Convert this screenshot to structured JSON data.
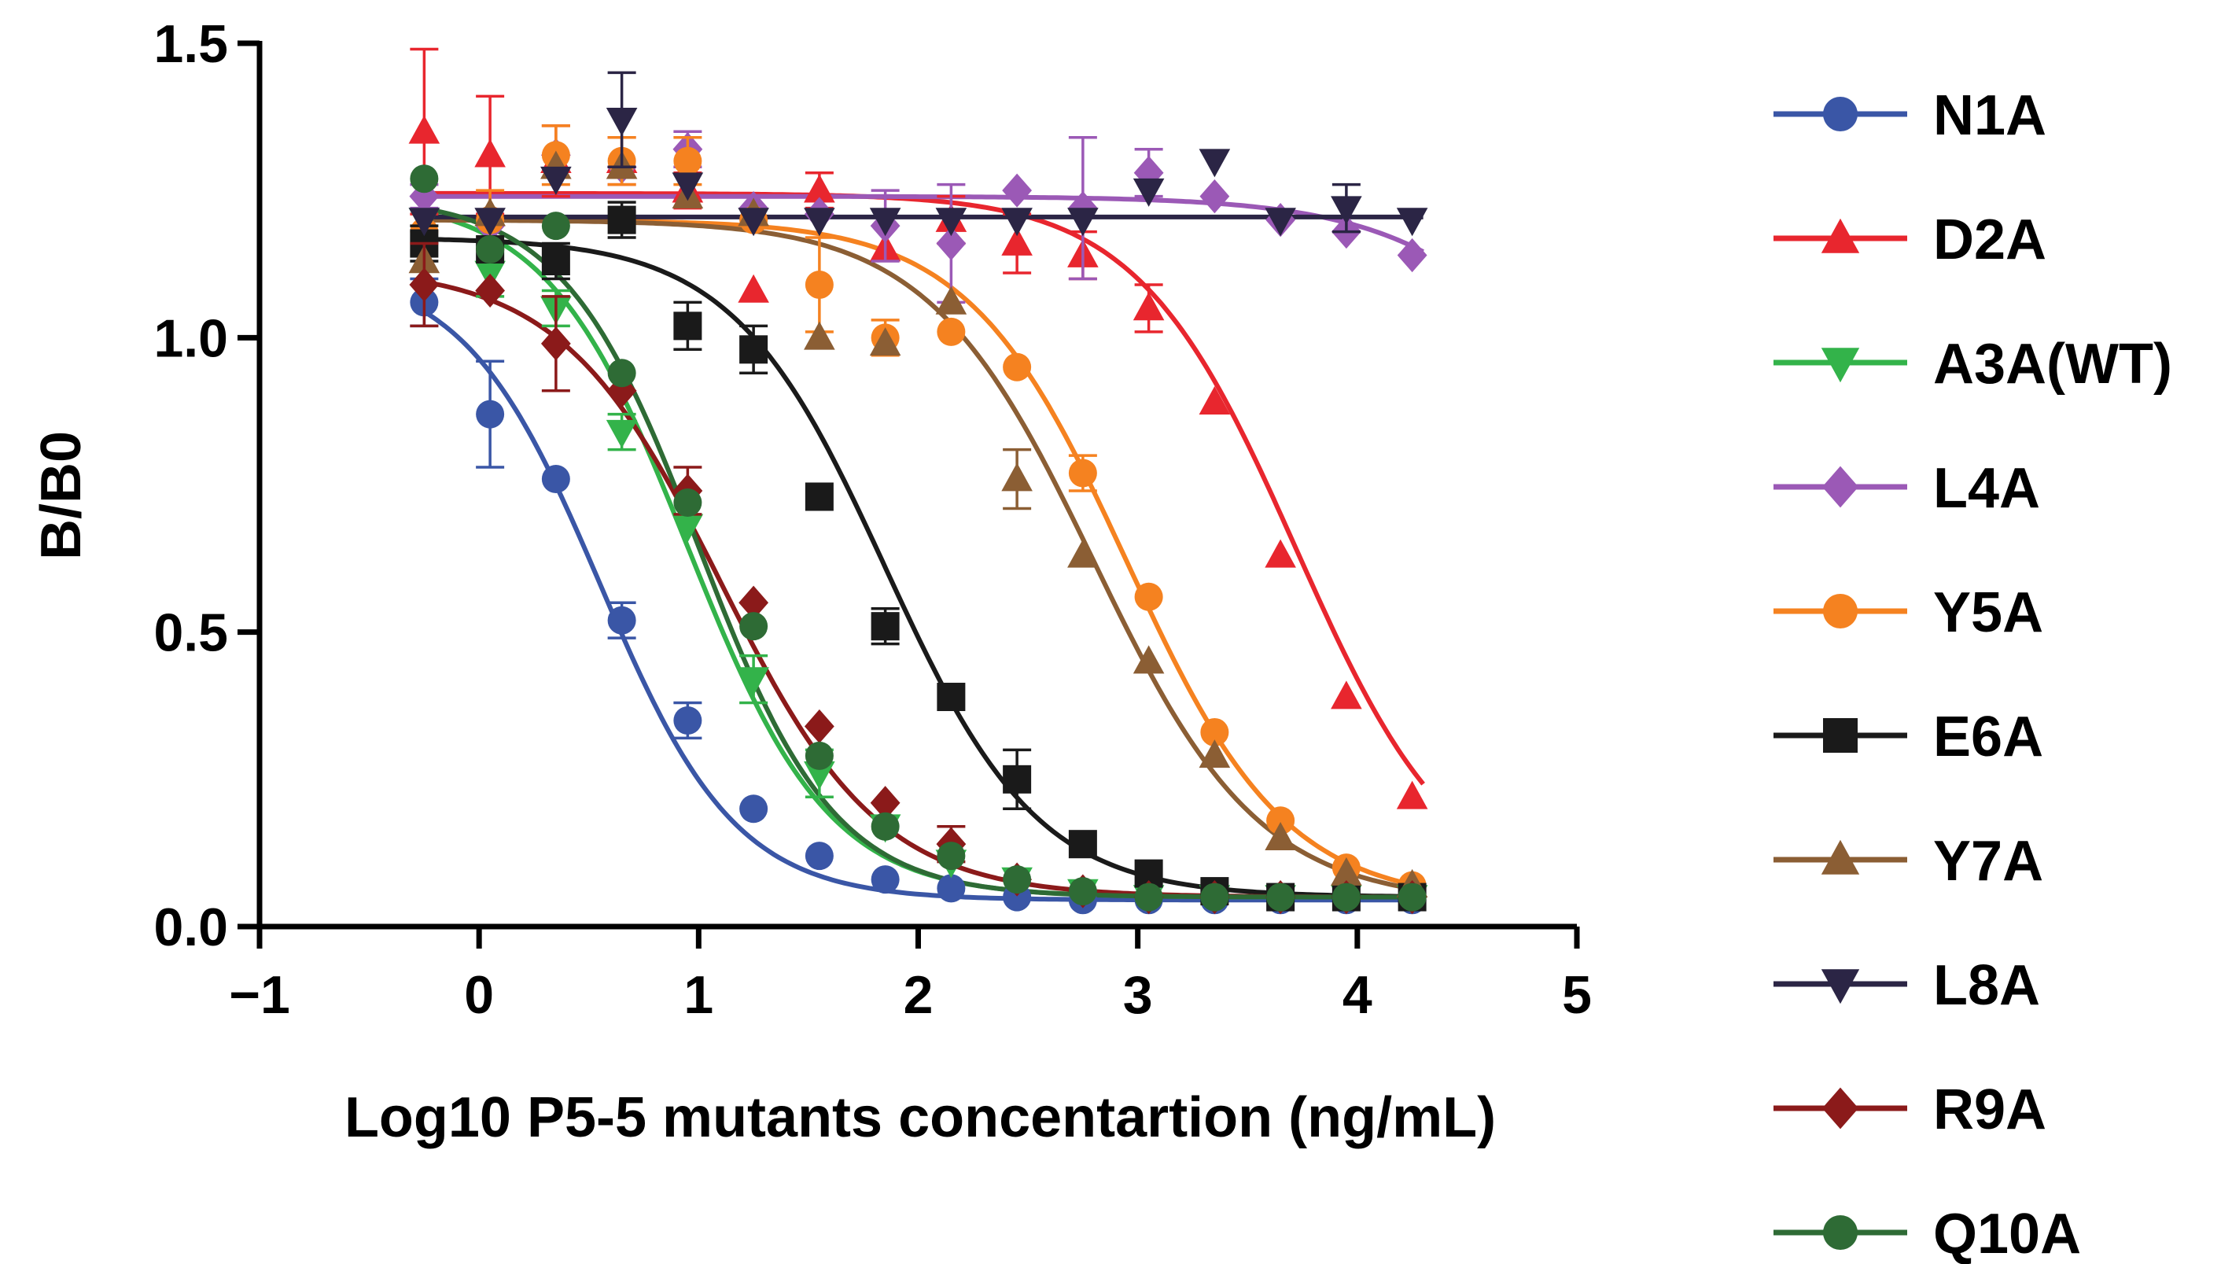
{
  "chart_data": {
    "type": "line",
    "title": "",
    "xlabel": "Log10 P5-5  mutants concentartion (ng/mL)",
    "ylabel": "B/B0",
    "xlim": [
      -1,
      5
    ],
    "ylim": [
      0,
      1.5
    ],
    "xticks": [
      -1,
      0,
      1,
      2,
      3,
      4,
      5
    ],
    "xtick_labels": [
      "−1",
      "0",
      "1",
      "2",
      "3",
      "4",
      "5"
    ],
    "yticks": [
      0,
      0.5,
      1.0,
      1.5
    ],
    "ytick_labels": [
      "0.0",
      "0.5",
      "1.0",
      "1.5"
    ],
    "legend_position": "right",
    "series": [
      {
        "name": "N1A",
        "color": "#3a56a6",
        "marker": "circle",
        "x": [
          -0.25,
          0.05,
          0.35,
          0.65,
          0.95,
          1.25,
          1.55,
          1.85,
          2.15,
          2.45,
          2.75,
          3.05,
          3.35,
          3.65,
          3.95,
          4.25
        ],
        "y": [
          1.06,
          0.87,
          0.76,
          0.52,
          0.35,
          0.2,
          0.12,
          0.08,
          0.065,
          0.05,
          0.045,
          0.045,
          0.045,
          0.045,
          0.045,
          0.045
        ],
        "err": [
          0.04,
          0.09,
          0.0,
          0.03,
          0.03,
          0.0,
          0.0,
          0.0,
          0.0,
          0.0,
          0.0,
          0.0,
          0.0,
          0.0,
          0.0,
          0.0
        ],
        "fit": {
          "top": 1.12,
          "bottom": 0.045,
          "logec50": 0.55,
          "hill": 1.4
        }
      },
      {
        "name": "D2A",
        "color": "#e8262e",
        "marker": "triangle-up",
        "x": [
          -0.25,
          0.05,
          0.35,
          0.65,
          0.95,
          1.25,
          1.55,
          1.85,
          2.15,
          2.45,
          2.75,
          3.05,
          3.35,
          3.65,
          3.95,
          4.25
        ],
        "y": [
          1.35,
          1.31,
          1.3,
          1.3,
          1.25,
          1.08,
          1.25,
          1.15,
          1.2,
          1.16,
          1.14,
          1.05,
          0.89,
          0.63,
          0.39,
          0.22
        ],
        "err": [
          0.14,
          0.1,
          0.06,
          0.04,
          0.03,
          0.0,
          0.03,
          0.0,
          0.04,
          0.05,
          0.04,
          0.04,
          0.0,
          0.0,
          0.0,
          0.0
        ],
        "fit": {
          "top": 1.245,
          "bottom": 0.04,
          "logec50": 3.72,
          "hill": 1.2
        }
      },
      {
        "name": "A3A(WT)",
        "color": "#33b34a",
        "marker": "triangle-down",
        "x": [
          -0.25,
          0.05,
          0.35,
          0.65,
          0.95,
          1.25,
          1.55,
          1.85,
          2.15,
          2.45,
          2.75,
          3.05,
          3.35,
          3.65,
          3.95,
          4.25
        ],
        "y": [
          1.2,
          1.11,
          1.05,
          0.84,
          0.68,
          0.42,
          0.26,
          0.17,
          0.11,
          0.08,
          0.06,
          0.05,
          0.05,
          0.05,
          0.05,
          0.05
        ],
        "err": [
          0.0,
          0.04,
          0.03,
          0.03,
          0.0,
          0.04,
          0.04,
          0.0,
          0.0,
          0.0,
          0.0,
          0.0,
          0.0,
          0.0,
          0.0,
          0.0
        ],
        "fit": {
          "top": 1.24,
          "bottom": 0.05,
          "logec50": 0.95,
          "hill": 1.35
        }
      },
      {
        "name": "L4A",
        "color": "#9b59b6",
        "marker": "diamond",
        "x": [
          -0.25,
          0.05,
          0.35,
          0.65,
          0.95,
          1.25,
          1.55,
          1.85,
          2.15,
          2.45,
          2.75,
          3.05,
          3.35,
          3.65,
          3.95,
          4.25
        ],
        "y": [
          1.24,
          1.19,
          1.31,
          1.29,
          1.32,
          1.22,
          1.21,
          1.19,
          1.16,
          1.25,
          1.22,
          1.28,
          1.24,
          1.2,
          1.18,
          1.14
        ],
        "err": [
          0.02,
          0.0,
          0.0,
          0.0,
          0.03,
          0.0,
          0.0,
          0.06,
          0.1,
          0.0,
          0.12,
          0.04,
          0.0,
          0.0,
          0.0,
          0.0
        ],
        "fit": {
          "top": 1.24,
          "bottom": 0.4,
          "logec50": 5.2,
          "hill": 1.0
        }
      },
      {
        "name": "Y5A",
        "color": "#f58220",
        "marker": "circle",
        "x": [
          -0.25,
          0.05,
          0.35,
          0.65,
          0.95,
          1.25,
          1.55,
          1.85,
          2.15,
          2.45,
          2.75,
          3.05,
          3.35,
          3.65,
          3.95,
          4.25
        ],
        "y": [
          1.18,
          1.2,
          1.31,
          1.3,
          1.3,
          1.2,
          1.09,
          1.0,
          1.01,
          0.95,
          0.77,
          0.56,
          0.33,
          0.18,
          0.1,
          0.07
        ],
        "err": [
          0.0,
          0.05,
          0.05,
          0.04,
          0.04,
          0.0,
          0.08,
          0.03,
          0.0,
          0.0,
          0.03,
          0.0,
          0.0,
          0.0,
          0.0,
          0.0
        ],
        "fit": {
          "top": 1.2,
          "bottom": 0.04,
          "logec50": 2.95,
          "hill": 1.2
        }
      },
      {
        "name": "E6A",
        "color": "#1a1a1a",
        "marker": "square",
        "x": [
          -0.25,
          0.05,
          0.35,
          0.65,
          0.95,
          1.25,
          1.55,
          1.85,
          2.15,
          2.45,
          2.75,
          3.05,
          3.35,
          3.65,
          3.95,
          4.25
        ],
        "y": [
          1.16,
          1.15,
          1.13,
          1.2,
          1.02,
          0.98,
          0.73,
          0.51,
          0.39,
          0.25,
          0.14,
          0.09,
          0.06,
          0.05,
          0.05,
          0.05
        ],
        "err": [
          0.03,
          0.0,
          0.03,
          0.03,
          0.04,
          0.04,
          0.0,
          0.03,
          0.0,
          0.05,
          0.0,
          0.0,
          0.0,
          0.0,
          0.0,
          0.0
        ],
        "fit": {
          "top": 1.17,
          "bottom": 0.05,
          "logec50": 1.85,
          "hill": 1.25
        }
      },
      {
        "name": "Y7A",
        "color": "#8b5e34",
        "marker": "triangle-up",
        "x": [
          -0.25,
          0.05,
          0.35,
          0.65,
          0.95,
          1.25,
          1.55,
          1.85,
          2.15,
          2.45,
          2.75,
          3.05,
          3.35,
          3.65,
          3.95,
          4.25
        ],
        "y": [
          1.13,
          1.21,
          1.29,
          1.29,
          1.24,
          1.21,
          1.0,
          0.99,
          1.06,
          0.76,
          0.63,
          0.45,
          0.29,
          0.15,
          0.09,
          0.07
        ],
        "err": [
          0.0,
          0.0,
          0.0,
          0.0,
          0.0,
          0.0,
          0.0,
          0.0,
          0.0,
          0.05,
          0.0,
          0.0,
          0.0,
          0.0,
          0.0,
          0.0
        ],
        "fit": {
          "top": 1.2,
          "bottom": 0.04,
          "logec50": 2.8,
          "hill": 1.15
        }
      },
      {
        "name": "L8A",
        "color": "#2b2545",
        "marker": "triangle-down",
        "x": [
          -0.25,
          0.05,
          0.35,
          0.65,
          0.95,
          1.25,
          1.55,
          1.85,
          2.15,
          2.45,
          2.75,
          3.05,
          3.35,
          3.65,
          3.95,
          4.25
        ],
        "y": [
          1.2,
          1.2,
          1.27,
          1.37,
          1.26,
          1.2,
          1.2,
          1.2,
          1.2,
          1.2,
          1.2,
          1.25,
          1.3,
          1.2,
          1.22,
          1.2
        ],
        "err": [
          0.0,
          0.0,
          0.0,
          0.08,
          0.0,
          0.0,
          0.0,
          0.0,
          0.0,
          0.0,
          0.0,
          0.0,
          0.0,
          0.0,
          0.04,
          0.0
        ],
        "fit": {
          "top": 1.205,
          "bottom": 1.205,
          "logec50": 2.0,
          "hill": 1.0
        }
      },
      {
        "name": "R9A",
        "color": "#8b1a1a",
        "marker": "diamond",
        "x": [
          -0.25,
          0.05,
          0.35,
          0.65,
          0.95,
          1.25,
          1.55,
          1.85,
          2.15,
          2.45,
          2.75,
          3.05,
          3.35,
          3.65,
          3.95,
          4.25
        ],
        "y": [
          1.09,
          1.08,
          0.99,
          0.91,
          0.74,
          0.55,
          0.34,
          0.21,
          0.14,
          0.08,
          0.06,
          0.05,
          0.05,
          0.05,
          0.05,
          0.05
        ],
        "err": [
          0.07,
          0.0,
          0.08,
          0.0,
          0.04,
          0.0,
          0.0,
          0.0,
          0.03,
          0.0,
          0.0,
          0.0,
          0.0,
          0.0,
          0.0,
          0.0
        ],
        "fit": {
          "top": 1.12,
          "bottom": 0.05,
          "logec50": 1.1,
          "hill": 1.2
        }
      },
      {
        "name": "Q10A",
        "color": "#2e6b35",
        "marker": "circle",
        "x": [
          -0.25,
          0.05,
          0.35,
          0.65,
          0.95,
          1.25,
          1.55,
          1.85,
          2.15,
          2.45,
          2.75,
          3.05,
          3.35,
          3.65,
          3.95,
          4.25
        ],
        "y": [
          1.27,
          1.15,
          1.19,
          0.94,
          0.72,
          0.51,
          0.29,
          0.17,
          0.12,
          0.08,
          0.06,
          0.05,
          0.05,
          0.05,
          0.05,
          0.05
        ],
        "err": [
          0.0,
          0.0,
          0.0,
          0.0,
          0.0,
          0.0,
          0.0,
          0.0,
          0.0,
          0.0,
          0.0,
          0.0,
          0.0,
          0.0,
          0.0,
          0.0
        ],
        "fit": {
          "top": 1.24,
          "bottom": 0.05,
          "logec50": 1.0,
          "hill": 1.4
        }
      }
    ]
  }
}
